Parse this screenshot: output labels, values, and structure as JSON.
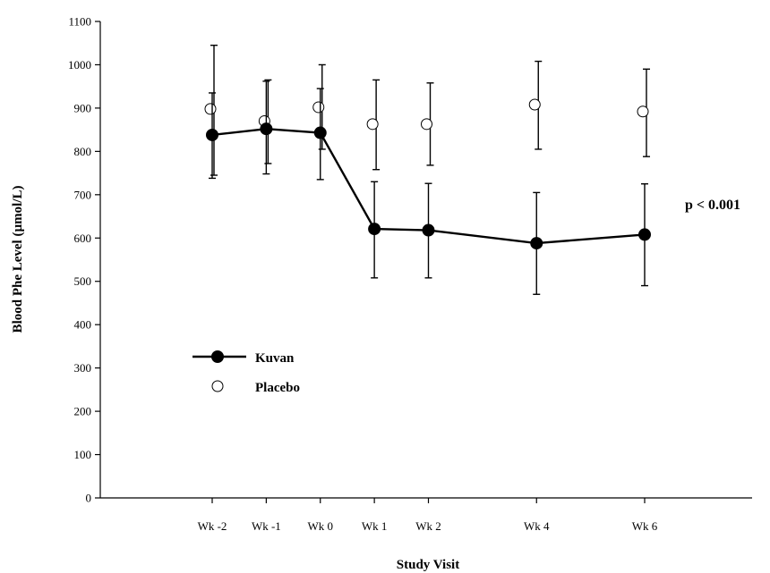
{
  "chart_data": {
    "type": "line",
    "xlabel": "Study Visit",
    "ylabel": "Blood Phe Level (µmol/L)",
    "ylim": [
      0,
      1100
    ],
    "yticks": [
      0,
      100,
      200,
      300,
      400,
      500,
      600,
      700,
      800,
      900,
      1000,
      1100
    ],
    "x_weeks": [
      -2,
      -1,
      0,
      1,
      2,
      4,
      6
    ],
    "categories": [
      "Wk -2",
      "Wk -1",
      "Wk 0",
      "Wk 1",
      "Wk 2",
      "Wk 4",
      "Wk 6"
    ],
    "grid": false,
    "legend_position": "bottom-left",
    "annotation": "p < 0.001",
    "series": [
      {
        "name": "Kuvan",
        "marker": "filled-circle",
        "connected": true,
        "values": [
          838,
          852,
          843,
          621,
          618,
          588,
          608
        ],
        "err_low": [
          738,
          748,
          735,
          508,
          508,
          470,
          490
        ],
        "err_high": [
          935,
          962,
          945,
          730,
          726,
          705,
          725
        ]
      },
      {
        "name": "Placebo",
        "marker": "open-circle",
        "connected": false,
        "values": [
          898,
          870,
          902,
          863,
          863,
          908,
          892
        ],
        "err_low": [
          745,
          772,
          805,
          758,
          768,
          805,
          788
        ],
        "err_high": [
          1045,
          965,
          1000,
          965,
          958,
          1008,
          990
        ]
      }
    ]
  }
}
